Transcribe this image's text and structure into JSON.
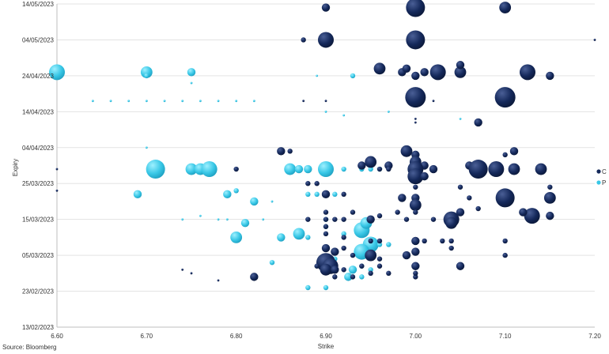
{
  "source": "Source: Bloomberg",
  "colors": {
    "C": "#14285a",
    "P": "#38c7e6",
    "grid": "#e3e3e3",
    "axis": "#bfbfbf"
  },
  "chart_data": {
    "type": "scatter",
    "xlabel": "Strike",
    "ylabel": "Expiry",
    "x_ticks": [
      "6.60",
      "6.70",
      "6.80",
      "6.90",
      "7.00",
      "7.10",
      "7.20"
    ],
    "xlim": [
      6.6,
      7.2
    ],
    "y_ticks": [
      "13/02/2023",
      "23/02/2023",
      "05/03/2023",
      "15/03/2023",
      "25/03/2023",
      "04/04/2023",
      "14/04/2023",
      "24/04/2023",
      "04/05/2023",
      "14/05/2023"
    ],
    "ylim": [
      "13/02/2023",
      "14/05/2023"
    ],
    "grid": true,
    "legend_position": "right",
    "series": [
      {
        "name": "C",
        "color": "#14285a",
        "points": [
          [
            6.9,
            "13/05/2023",
            3
          ],
          [
            7.0,
            "13/05/2023",
            6
          ],
          [
            7.1,
            "13/05/2023",
            4
          ],
          [
            6.875,
            "04/05/2023",
            2
          ],
          [
            6.9,
            "04/05/2023",
            5
          ],
          [
            7.0,
            "04/05/2023",
            6
          ],
          [
            7.2,
            "04/05/2023",
            1
          ],
          [
            6.96,
            "26/04/2023",
            4
          ],
          [
            6.985,
            "25/04/2023",
            3
          ],
          [
            6.99,
            "26/04/2023",
            3
          ],
          [
            7.0,
            "24/04/2023",
            3
          ],
          [
            7.01,
            "25/04/2023",
            3
          ],
          [
            7.025,
            "25/04/2023",
            5
          ],
          [
            7.05,
            "25/04/2023",
            4
          ],
          [
            7.05,
            "27/04/2023",
            3
          ],
          [
            7.125,
            "25/04/2023",
            5
          ],
          [
            7.15,
            "24/04/2023",
            3
          ],
          [
            7.0,
            "18/04/2023",
            7
          ],
          [
            7.1,
            "18/04/2023",
            7
          ],
          [
            7.02,
            "17/04/2023",
            1
          ],
          [
            6.9,
            "17/04/2023",
            1
          ],
          [
            6.875,
            "17/04/2023",
            1
          ],
          [
            7.07,
            "11/04/2023",
            3
          ],
          [
            7.0,
            "12/04/2023",
            1
          ],
          [
            7.0,
            "11/04/2023",
            1
          ],
          [
            6.85,
            "03/04/2023",
            3
          ],
          [
            6.86,
            "03/04/2023",
            2
          ],
          [
            6.99,
            "03/04/2023",
            4
          ],
          [
            7.0,
            "02/04/2023",
            3
          ],
          [
            7.11,
            "03/04/2023",
            3
          ],
          [
            7.1,
            "02/04/2023",
            2
          ],
          [
            6.95,
            "31/03/2023",
            4
          ],
          [
            6.94,
            "30/03/2023",
            3
          ],
          [
            6.97,
            "30/03/2023",
            3
          ],
          [
            7.0,
            "31/03/2023",
            4
          ],
          [
            7.01,
            "30/03/2023",
            3
          ],
          [
            6.96,
            "29/03/2023",
            2
          ],
          [
            6.97,
            "29/03/2023",
            2
          ],
          [
            7.0,
            "29/03/2023",
            5
          ],
          [
            7.02,
            "29/03/2023",
            3
          ],
          [
            7.06,
            "30/03/2023",
            3
          ],
          [
            7.07,
            "29/03/2023",
            6
          ],
          [
            7.09,
            "29/03/2023",
            5
          ],
          [
            7.11,
            "29/03/2023",
            4
          ],
          [
            7.14,
            "29/03/2023",
            4
          ],
          [
            6.8,
            "29/03/2023",
            2
          ],
          [
            6.6,
            "29/03/2023",
            1
          ],
          [
            7.0,
            "27/03/2023",
            5
          ],
          [
            7.01,
            "27/03/2023",
            3
          ],
          [
            6.88,
            "25/03/2023",
            2
          ],
          [
            6.89,
            "25/03/2023",
            2
          ],
          [
            7.0,
            "24/03/2023",
            2
          ],
          [
            7.05,
            "24/03/2023",
            2
          ],
          [
            7.15,
            "24/03/2023",
            2
          ],
          [
            6.6,
            "23/03/2023",
            1
          ],
          [
            6.9,
            "22/03/2023",
            3
          ],
          [
            6.92,
            "22/03/2023",
            2
          ],
          [
            6.985,
            "21/03/2023",
            3
          ],
          [
            7.0,
            "21/03/2023",
            3
          ],
          [
            7.06,
            "21/03/2023",
            2
          ],
          [
            7.1,
            "21/03/2023",
            6
          ],
          [
            7.15,
            "21/03/2023",
            4
          ],
          [
            7.0,
            "19/03/2023",
            4
          ],
          [
            7.05,
            "17/03/2023",
            3
          ],
          [
            7.07,
            "18/03/2023",
            2
          ],
          [
            7.0,
            "17/03/2023",
            2
          ],
          [
            6.9,
            "17/03/2023",
            2
          ],
          [
            6.93,
            "17/03/2023",
            2
          ],
          [
            6.98,
            "17/03/2023",
            2
          ],
          [
            7.04,
            "15/03/2023",
            5
          ],
          [
            7.04,
            "14/03/2023",
            4
          ],
          [
            7.13,
            "16/03/2023",
            5
          ],
          [
            7.15,
            "16/03/2023",
            3
          ],
          [
            7.12,
            "17/03/2023",
            3
          ],
          [
            6.88,
            "15/03/2023",
            2
          ],
          [
            6.9,
            "15/03/2023",
            2
          ],
          [
            6.91,
            "15/03/2023",
            2
          ],
          [
            6.92,
            "15/03/2023",
            2
          ],
          [
            6.95,
            "15/03/2023",
            3
          ],
          [
            6.96,
            "16/03/2023",
            2
          ],
          [
            6.99,
            "15/03/2023",
            2
          ],
          [
            7.02,
            "15/03/2023",
            2
          ],
          [
            6.9,
            "13/03/2023",
            2
          ],
          [
            6.9,
            "11/03/2023",
            2
          ],
          [
            6.92,
            "10/03/2023",
            2
          ],
          [
            6.95,
            "09/03/2023",
            2
          ],
          [
            6.96,
            "09/03/2023",
            2
          ],
          [
            7.0,
            "09/03/2023",
            3
          ],
          [
            7.01,
            "09/03/2023",
            2
          ],
          [
            7.03,
            "09/03/2023",
            2
          ],
          [
            7.04,
            "09/03/2023",
            2
          ],
          [
            7.1,
            "09/03/2023",
            2
          ],
          [
            7.04,
            "07/03/2023",
            2
          ],
          [
            6.9,
            "07/03/2023",
            3
          ],
          [
            6.91,
            "06/03/2023",
            3
          ],
          [
            6.92,
            "07/03/2023",
            2
          ],
          [
            6.93,
            "05/03/2023",
            2
          ],
          [
            6.95,
            "05/03/2023",
            4
          ],
          [
            6.96,
            "04/03/2023",
            2
          ],
          [
            6.99,
            "05/03/2023",
            3
          ],
          [
            7.0,
            "06/03/2023",
            3
          ],
          [
            7.1,
            "05/03/2023",
            2
          ],
          [
            6.9,
            "03/03/2023",
            6
          ],
          [
            6.905,
            "02/03/2023",
            5
          ],
          [
            6.9,
            "01/03/2023",
            4
          ],
          [
            6.91,
            "01/03/2023",
            3
          ],
          [
            6.89,
            "02/03/2023",
            2
          ],
          [
            6.92,
            "01/03/2023",
            2
          ],
          [
            6.94,
            "02/03/2023",
            2
          ],
          [
            6.96,
            "02/03/2023",
            2
          ],
          [
            7.0,
            "02/03/2023",
            3
          ],
          [
            7.05,
            "02/03/2023",
            3
          ],
          [
            6.91,
            "27/02/2023",
            2
          ],
          [
            6.93,
            "27/02/2023",
            2
          ],
          [
            6.95,
            "28/02/2023",
            2
          ],
          [
            6.97,
            "28/02/2023",
            2
          ],
          [
            7.0,
            "27/02/2023",
            2
          ],
          [
            7.0,
            "28/02/2023",
            2
          ],
          [
            6.82,
            "27/02/2023",
            3
          ],
          [
            6.75,
            "28/02/2023",
            1
          ],
          [
            6.74,
            "01/03/2023",
            1
          ],
          [
            6.78,
            "26/02/2023",
            1
          ]
        ]
      },
      {
        "name": "P",
        "color": "#38c7e6",
        "points": [
          [
            6.6,
            "25/04/2023",
            5
          ],
          [
            6.7,
            "25/04/2023",
            4
          ],
          [
            6.7,
            "24/04/2023",
            2
          ],
          [
            6.75,
            "25/04/2023",
            3
          ],
          [
            6.75,
            "22/04/2023",
            1
          ],
          [
            6.89,
            "24/04/2023",
            1
          ],
          [
            6.93,
            "24/04/2023",
            2
          ],
          [
            6.64,
            "17/04/2023",
            1
          ],
          [
            6.66,
            "17/04/2023",
            1
          ],
          [
            6.68,
            "17/04/2023",
            1
          ],
          [
            6.7,
            "17/04/2023",
            1
          ],
          [
            6.72,
            "17/04/2023",
            1
          ],
          [
            6.74,
            "17/04/2023",
            1
          ],
          [
            6.76,
            "17/04/2023",
            1
          ],
          [
            6.78,
            "17/04/2023",
            1
          ],
          [
            6.8,
            "17/04/2023",
            1
          ],
          [
            6.82,
            "17/04/2023",
            1
          ],
          [
            6.9,
            "14/04/2023",
            1
          ],
          [
            6.92,
            "13/04/2023",
            1
          ],
          [
            6.97,
            "14/04/2023",
            1
          ],
          [
            7.05,
            "12/04/2023",
            1
          ],
          [
            6.7,
            "04/04/2023",
            1
          ],
          [
            6.71,
            "29/03/2023",
            6
          ],
          [
            6.75,
            "29/03/2023",
            4
          ],
          [
            6.76,
            "29/03/2023",
            4
          ],
          [
            6.77,
            "29/03/2023",
            5
          ],
          [
            6.86,
            "29/03/2023",
            4
          ],
          [
            6.87,
            "29/03/2023",
            3
          ],
          [
            6.88,
            "29/03/2023",
            3
          ],
          [
            6.9,
            "29/03/2023",
            5
          ],
          [
            6.92,
            "29/03/2023",
            2
          ],
          [
            6.94,
            "29/03/2023",
            2
          ],
          [
            6.95,
            "29/03/2023",
            2
          ],
          [
            6.96,
            "29/03/2023",
            2
          ],
          [
            6.69,
            "22/03/2023",
            3
          ],
          [
            6.79,
            "22/03/2023",
            3
          ],
          [
            6.8,
            "23/03/2023",
            2
          ],
          [
            6.82,
            "20/03/2023",
            3
          ],
          [
            6.84,
            "20/03/2023",
            1
          ],
          [
            6.88,
            "22/03/2023",
            2
          ],
          [
            6.89,
            "22/03/2023",
            2
          ],
          [
            6.91,
            "22/03/2023",
            2
          ],
          [
            6.81,
            "14/03/2023",
            3
          ],
          [
            6.8,
            "10/03/2023",
            4
          ],
          [
            6.85,
            "10/03/2023",
            3
          ],
          [
            6.87,
            "11/03/2023",
            4
          ],
          [
            6.88,
            "10/03/2023",
            2
          ],
          [
            6.9,
            "13/03/2023",
            2
          ],
          [
            6.9,
            "15/03/2023",
            2
          ],
          [
            6.92,
            "11/03/2023",
            2
          ],
          [
            6.94,
            "12/03/2023",
            5
          ],
          [
            6.945,
            "14/03/2023",
            4
          ],
          [
            6.95,
            "08/03/2023",
            5
          ],
          [
            6.94,
            "06/03/2023",
            5
          ],
          [
            6.96,
            "08/03/2023",
            2
          ],
          [
            6.97,
            "08/03/2023",
            2
          ],
          [
            6.84,
            "03/03/2023",
            2
          ],
          [
            6.91,
            "04/03/2023",
            2
          ],
          [
            6.93,
            "01/03/2023",
            3
          ],
          [
            6.94,
            "02/03/2023",
            2
          ],
          [
            6.95,
            "01/03/2023",
            2
          ],
          [
            6.925,
            "27/02/2023",
            3
          ],
          [
            6.94,
            "27/02/2023",
            2
          ],
          [
            6.88,
            "24/02/2023",
            2
          ],
          [
            6.9,
            "24/02/2023",
            2
          ],
          [
            6.79,
            "15/03/2023",
            1
          ],
          [
            6.83,
            "15/03/2023",
            1
          ],
          [
            6.74,
            "15/03/2023",
            1
          ],
          [
            6.76,
            "16/03/2023",
            1
          ],
          [
            6.78,
            "15/03/2023",
            1
          ]
        ]
      }
    ]
  }
}
